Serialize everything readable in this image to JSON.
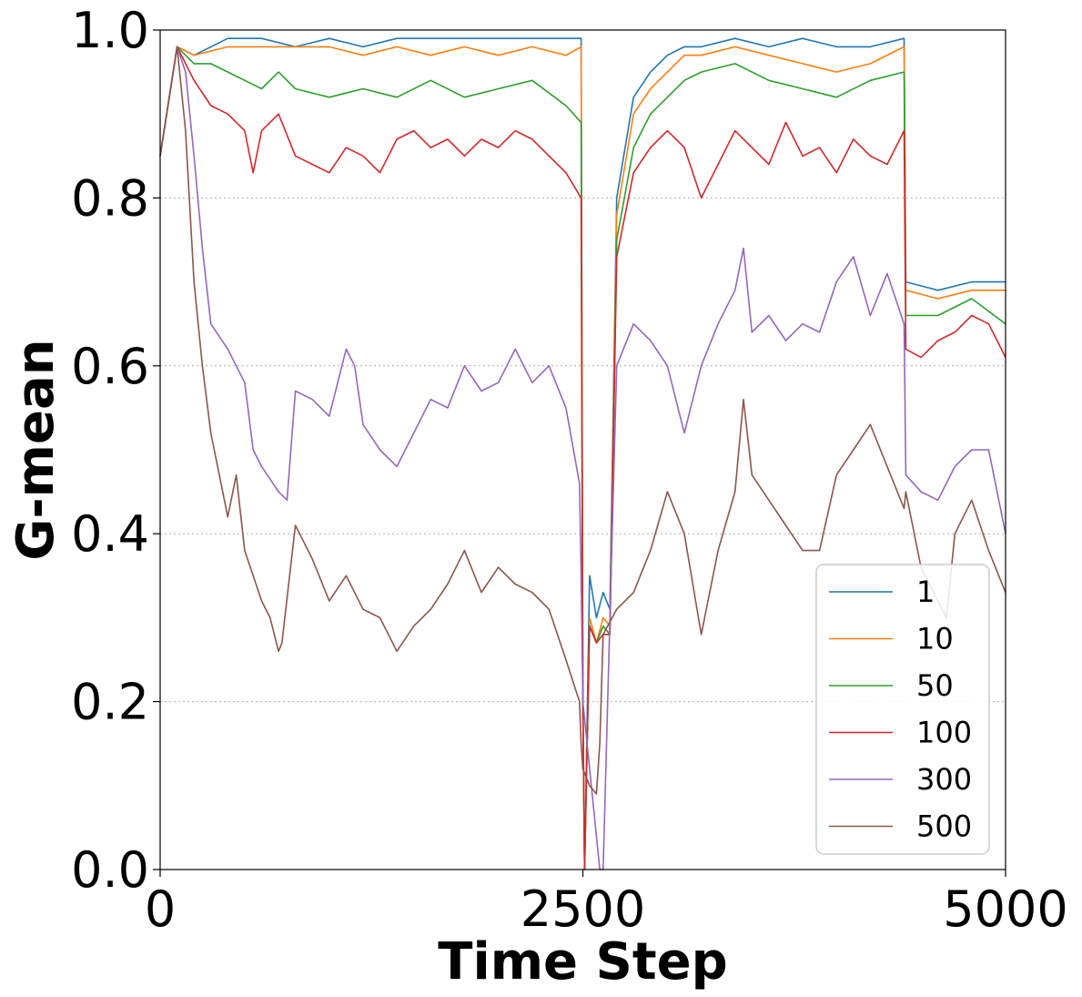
{
  "chart_data": {
    "type": "line",
    "title": "",
    "xlabel": "Time Step",
    "ylabel": "G-mean",
    "xlim": [
      0,
      5000
    ],
    "ylim": [
      0,
      1.0
    ],
    "xticks": [
      0,
      2500,
      5000
    ],
    "xtick_labels": [
      "0",
      "2500",
      "5000"
    ],
    "yticks": [
      0,
      0.2,
      0.4,
      0.6,
      0.8,
      1.0
    ],
    "ytick_labels": [
      "0.0",
      "0.2",
      "0.4",
      "0.6",
      "0.8",
      "1.0"
    ],
    "grid": "horizontal-dotted",
    "legend_position": "lower-right",
    "series": [
      {
        "name": "1",
        "color": "#1f77b4",
        "x": [
          0,
          100,
          200,
          400,
          600,
          800,
          1000,
          1200,
          1400,
          1600,
          1800,
          2000,
          2200,
          2400,
          2490,
          2500,
          2510,
          2540,
          2580,
          2620,
          2660,
          2700,
          2800,
          2900,
          3000,
          3100,
          3200,
          3400,
          3600,
          3800,
          4000,
          4200,
          4400,
          4410,
          4600,
          4800,
          5000
        ],
        "y": [
          0.85,
          0.98,
          0.97,
          0.99,
          0.99,
          0.98,
          0.99,
          0.98,
          0.99,
          0.99,
          0.99,
          0.99,
          0.99,
          0.99,
          0.99,
          0.2,
          0.0,
          0.35,
          0.3,
          0.33,
          0.31,
          0.8,
          0.92,
          0.95,
          0.97,
          0.98,
          0.98,
          0.99,
          0.98,
          0.99,
          0.98,
          0.98,
          0.99,
          0.7,
          0.69,
          0.7,
          0.7
        ]
      },
      {
        "name": "10",
        "color": "#ff7f0e",
        "x": [
          0,
          100,
          200,
          400,
          600,
          800,
          1000,
          1200,
          1400,
          1600,
          1800,
          2000,
          2200,
          2400,
          2490,
          2500,
          2510,
          2540,
          2580,
          2620,
          2660,
          2700,
          2800,
          2900,
          3000,
          3100,
          3200,
          3400,
          3600,
          3800,
          4000,
          4200,
          4400,
          4410,
          4600,
          4800,
          5000
        ],
        "y": [
          0.85,
          0.98,
          0.97,
          0.98,
          0.98,
          0.98,
          0.98,
          0.97,
          0.98,
          0.97,
          0.98,
          0.97,
          0.98,
          0.97,
          0.98,
          0.2,
          0.0,
          0.3,
          0.27,
          0.3,
          0.29,
          0.78,
          0.9,
          0.93,
          0.95,
          0.97,
          0.97,
          0.98,
          0.97,
          0.96,
          0.95,
          0.96,
          0.98,
          0.69,
          0.68,
          0.69,
          0.69
        ]
      },
      {
        "name": "50",
        "color": "#2ca02c",
        "x": [
          0,
          100,
          200,
          300,
          400,
          500,
          600,
          700,
          800,
          1000,
          1200,
          1400,
          1600,
          1800,
          2000,
          2200,
          2400,
          2490,
          2500,
          2510,
          2540,
          2580,
          2620,
          2660,
          2700,
          2800,
          2900,
          3000,
          3100,
          3200,
          3400,
          3600,
          3800,
          4000,
          4200,
          4400,
          4410,
          4600,
          4800,
          5000
        ],
        "y": [
          0.85,
          0.98,
          0.96,
          0.96,
          0.95,
          0.94,
          0.93,
          0.95,
          0.93,
          0.92,
          0.93,
          0.92,
          0.94,
          0.92,
          0.93,
          0.94,
          0.91,
          0.89,
          0.2,
          0.0,
          0.29,
          0.27,
          0.29,
          0.28,
          0.75,
          0.86,
          0.9,
          0.92,
          0.94,
          0.95,
          0.96,
          0.94,
          0.93,
          0.92,
          0.94,
          0.95,
          0.66,
          0.66,
          0.68,
          0.65
        ]
      },
      {
        "name": "100",
        "color": "#d62728",
        "x": [
          0,
          100,
          200,
          300,
          400,
          500,
          550,
          600,
          700,
          800,
          900,
          1000,
          1100,
          1200,
          1300,
          1400,
          1500,
          1600,
          1700,
          1800,
          1900,
          2000,
          2100,
          2200,
          2300,
          2400,
          2490,
          2500,
          2510,
          2540,
          2580,
          2620,
          2660,
          2700,
          2800,
          2900,
          3000,
          3100,
          3200,
          3300,
          3400,
          3500,
          3600,
          3700,
          3800,
          3900,
          4000,
          4100,
          4200,
          4300,
          4400,
          4410,
          4500,
          4600,
          4700,
          4800,
          4900,
          5000
        ],
        "y": [
          0.85,
          0.98,
          0.94,
          0.91,
          0.9,
          0.88,
          0.83,
          0.88,
          0.9,
          0.85,
          0.84,
          0.83,
          0.86,
          0.85,
          0.83,
          0.87,
          0.88,
          0.86,
          0.87,
          0.85,
          0.87,
          0.86,
          0.88,
          0.87,
          0.85,
          0.83,
          0.8,
          0.2,
          0.0,
          0.29,
          0.27,
          0.28,
          0.28,
          0.73,
          0.83,
          0.86,
          0.88,
          0.86,
          0.8,
          0.84,
          0.88,
          0.86,
          0.84,
          0.89,
          0.85,
          0.86,
          0.83,
          0.87,
          0.85,
          0.84,
          0.88,
          0.62,
          0.61,
          0.63,
          0.64,
          0.66,
          0.65,
          0.61
        ]
      },
      {
        "name": "300",
        "color": "#9467bd",
        "x": [
          0,
          100,
          150,
          200,
          250,
          300,
          400,
          500,
          550,
          600,
          700,
          750,
          800,
          900,
          1000,
          1050,
          1100,
          1150,
          1200,
          1300,
          1400,
          1500,
          1600,
          1700,
          1800,
          1900,
          2000,
          2100,
          2200,
          2300,
          2400,
          2480,
          2490,
          2500,
          2600,
          2620,
          2700,
          2800,
          2900,
          3000,
          3100,
          3200,
          3300,
          3400,
          3450,
          3500,
          3600,
          3700,
          3800,
          3900,
          4000,
          4100,
          4200,
          4300,
          4400,
          4410,
          4500,
          4600,
          4700,
          4800,
          4900,
          5000
        ],
        "y": [
          0.85,
          0.98,
          0.95,
          0.85,
          0.74,
          0.65,
          0.62,
          0.58,
          0.5,
          0.48,
          0.45,
          0.44,
          0.57,
          0.56,
          0.54,
          0.58,
          0.62,
          0.6,
          0.53,
          0.5,
          0.48,
          0.52,
          0.56,
          0.55,
          0.6,
          0.57,
          0.58,
          0.62,
          0.58,
          0.6,
          0.55,
          0.46,
          0.35,
          0.2,
          0.0,
          0.0,
          0.6,
          0.65,
          0.63,
          0.6,
          0.52,
          0.6,
          0.65,
          0.69,
          0.74,
          0.64,
          0.66,
          0.63,
          0.65,
          0.64,
          0.7,
          0.73,
          0.66,
          0.71,
          0.65,
          0.47,
          0.45,
          0.44,
          0.48,
          0.5,
          0.5,
          0.4
        ]
      },
      {
        "name": "500",
        "color": "#8c564b",
        "x": [
          0,
          100,
          150,
          200,
          250,
          300,
          350,
          400,
          450,
          500,
          550,
          600,
          650,
          700,
          720,
          800,
          850,
          900,
          1000,
          1100,
          1200,
          1300,
          1400,
          1500,
          1600,
          1700,
          1800,
          1900,
          2000,
          2100,
          2200,
          2300,
          2400,
          2480,
          2490,
          2500,
          2540,
          2580,
          2600,
          2620,
          2700,
          2800,
          2900,
          3000,
          3100,
          3200,
          3300,
          3400,
          3450,
          3500,
          3600,
          3700,
          3800,
          3900,
          4000,
          4100,
          4200,
          4300,
          4400,
          4410,
          4500,
          4600,
          4650,
          4700,
          4800,
          4900,
          5000
        ],
        "y": [
          0.85,
          0.98,
          0.88,
          0.7,
          0.6,
          0.52,
          0.47,
          0.42,
          0.47,
          0.38,
          0.35,
          0.32,
          0.3,
          0.26,
          0.27,
          0.41,
          0.39,
          0.37,
          0.32,
          0.35,
          0.31,
          0.3,
          0.26,
          0.29,
          0.31,
          0.34,
          0.38,
          0.33,
          0.36,
          0.34,
          0.33,
          0.31,
          0.25,
          0.2,
          0.15,
          0.12,
          0.1,
          0.09,
          0.15,
          0.28,
          0.31,
          0.33,
          0.38,
          0.45,
          0.4,
          0.28,
          0.38,
          0.45,
          0.56,
          0.47,
          0.44,
          0.41,
          0.38,
          0.38,
          0.47,
          0.5,
          0.53,
          0.48,
          0.43,
          0.45,
          0.36,
          0.32,
          0.3,
          0.4,
          0.44,
          0.38,
          0.33
        ]
      }
    ]
  }
}
